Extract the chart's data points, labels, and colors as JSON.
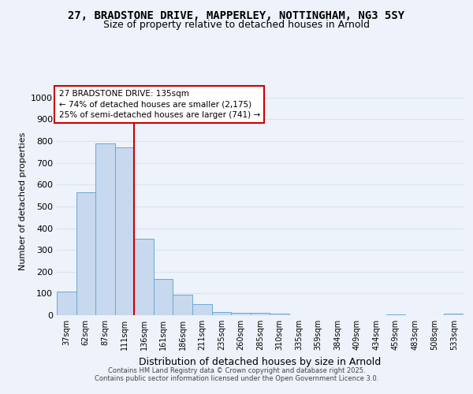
{
  "title1": "27, BRADSTONE DRIVE, MAPPERLEY, NOTTINGHAM, NG3 5SY",
  "title2": "Size of property relative to detached houses in Arnold",
  "xlabel": "Distribution of detached houses by size in Arnold",
  "ylabel": "Number of detached properties",
  "bar_labels": [
    "37sqm",
    "62sqm",
    "87sqm",
    "111sqm",
    "136sqm",
    "161sqm",
    "186sqm",
    "211sqm",
    "235sqm",
    "260sqm",
    "285sqm",
    "310sqm",
    "335sqm",
    "359sqm",
    "384sqm",
    "409sqm",
    "434sqm",
    "459sqm",
    "483sqm",
    "508sqm",
    "533sqm"
  ],
  "bar_heights": [
    110,
    565,
    790,
    770,
    350,
    165,
    95,
    52,
    15,
    10,
    10,
    8,
    0,
    0,
    0,
    0,
    0,
    5,
    0,
    0,
    8
  ],
  "bar_color": "#c8d8ee",
  "bar_edge_color": "#6aaad4",
  "ylim": [
    0,
    1050
  ],
  "yticks": [
    0,
    100,
    200,
    300,
    400,
    500,
    600,
    700,
    800,
    900,
    1000
  ],
  "red_line_x": 3.5,
  "red_line_color": "#cc0000",
  "annotation_line1": "27 BRADSTONE DRIVE: 135sqm",
  "annotation_line2": "← 74% of detached houses are smaller (2,175)",
  "annotation_line3": "25% of semi-detached houses are larger (741) →",
  "annotation_box_facecolor": "#ffffff",
  "annotation_box_edgecolor": "#cc0000",
  "footer_text1": "Contains HM Land Registry data © Crown copyright and database right 2025.",
  "footer_text2": "Contains public sector information licensed under the Open Government Licence 3.0.",
  "background_color": "#eef2fa",
  "grid_color": "#d8e4f0",
  "title1_fontsize": 10,
  "title2_fontsize": 9
}
